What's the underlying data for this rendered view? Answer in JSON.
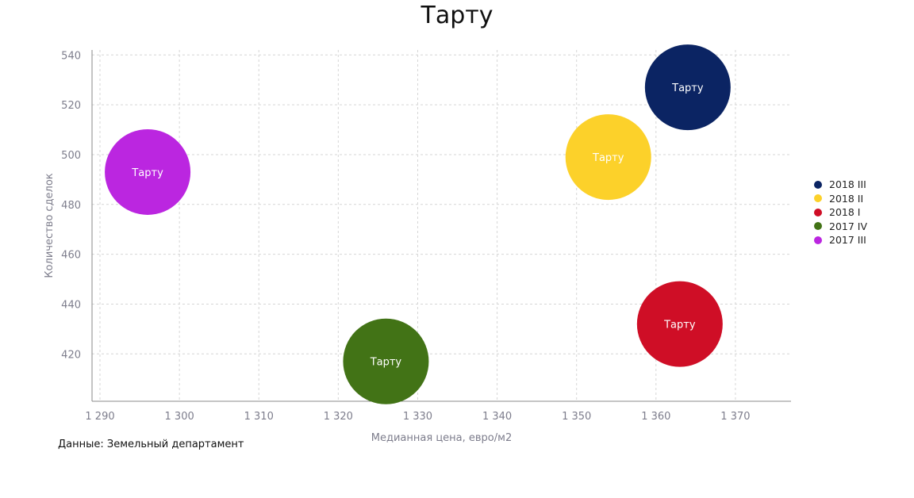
{
  "chart_data": {
    "type": "scatter",
    "title": "Тарту",
    "xlabel": "Медианная цена, евро/м2",
    "ylabel": "Количество сделок",
    "xlim": [
      1289,
      1377
    ],
    "ylim": [
      401,
      542
    ],
    "xticks": [
      1290,
      1300,
      1310,
      1320,
      1330,
      1340,
      1350,
      1360,
      1370
    ],
    "xtick_labels": [
      "1 290",
      "1 300",
      "1 310",
      "1 320",
      "1 330",
      "1 340",
      "1 350",
      "1 360",
      "1 370"
    ],
    "yticks": [
      420,
      440,
      460,
      480,
      500,
      520,
      540
    ],
    "ytick_labels": [
      "420",
      "440",
      "460",
      "480",
      "500",
      "520",
      "540"
    ],
    "grid": true,
    "legend_position": "right",
    "series": [
      {
        "name": "2018 III",
        "color": "#0b2463",
        "x": 1364,
        "y": 527,
        "label": "Тарту"
      },
      {
        "name": "2018 II",
        "color": "#fcd12a",
        "x": 1354,
        "y": 499,
        "label": "Тарту"
      },
      {
        "name": "2018 I",
        "color": "#cf0e26",
        "x": 1363,
        "y": 432,
        "label": "Тарту"
      },
      {
        "name": "2017 IV",
        "color": "#427316",
        "x": 1326,
        "y": 417,
        "label": "Тарту"
      },
      {
        "name": "2017 III",
        "color": "#bb26e0",
        "x": 1296,
        "y": 493,
        "label": "Тарту"
      }
    ]
  },
  "source": "Данные: Земельный департамент"
}
